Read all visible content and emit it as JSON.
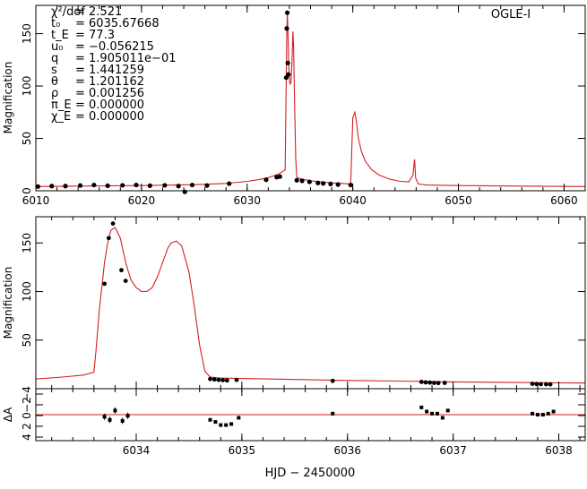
{
  "figure": {
    "xlabel": "HJD − 2450000"
  },
  "chart_data": [
    {
      "type": "line",
      "panel": "top",
      "label": "OGLE-I",
      "ylabel": "Magnification",
      "xlim": [
        6010,
        6062
      ],
      "ylim": [
        0,
        177
      ],
      "xticks": [
        6010,
        6020,
        6030,
        6040,
        6050,
        6060
      ],
      "yticks": [
        0,
        50,
        100,
        150
      ],
      "params": [
        {
          "sym": "χ²/dof",
          "val": "= 2.521"
        },
        {
          "sym": "t₀",
          "val": "= 6035.67668"
        },
        {
          "sym": "t_E",
          "val": "= 77.3"
        },
        {
          "sym": "u₀",
          "val": "= −0.056215"
        },
        {
          "sym": "q",
          "val": "= 1.905011e−01"
        },
        {
          "sym": "s",
          "val": "= 1.441259"
        },
        {
          "sym": "θ",
          "val": "= 1.201162"
        },
        {
          "sym": "ρ",
          "val": "= 0.001256"
        },
        {
          "sym": "π_E",
          "val": "= 0.000000"
        },
        {
          "sym": "χ_E",
          "val": "= 0.000000"
        }
      ],
      "model": {
        "x": [
          6010,
          6015,
          6020,
          6025,
          6028,
          6030,
          6031,
          6032,
          6033,
          6033.6,
          6033.7,
          6033.75,
          6033.8,
          6033.85,
          6033.95,
          6034.05,
          6034.15,
          6034.25,
          6034.33,
          6034.4,
          6034.5,
          6034.6,
          6034.7,
          6035,
          6036,
          6037,
          6038,
          6039,
          6039.8,
          6040.0,
          6040.2,
          6040.35,
          6040.5,
          6040.8,
          6041.2,
          6041.8,
          6042.5,
          6043.5,
          6044.5,
          6045.3,
          6045.7,
          6045.85,
          6045.95,
          6046.2,
          6047,
          6050,
          6055,
          6062
        ],
        "y": [
          4,
          4.5,
          5,
          5.8,
          7,
          9,
          10.5,
          12.5,
          16,
          20,
          108,
          148,
          170,
          155,
          118,
          102,
          103,
          125,
          152,
          138,
          80,
          30,
          13,
          11.5,
          9.5,
          8.5,
          7.5,
          7,
          6.5,
          70,
          75,
          66,
          52,
          38,
          28,
          20,
          15,
          11,
          9,
          8.5,
          15,
          30,
          12,
          6.5,
          5.5,
          5,
          4.5,
          4
        ]
      },
      "points": {
        "x": [
          6010.2,
          6011.5,
          6012.8,
          6014.2,
          6015.5,
          6016.8,
          6018.2,
          6019.5,
          6020.8,
          6022.2,
          6023.5,
          6024.1,
          6024.8,
          6026.2,
          6028.3,
          6031.8,
          6032.8,
          6033.1,
          6033.7,
          6033.75,
          6033.8,
          6033.85,
          6033.9,
          6034.7,
          6035.2,
          6035.9,
          6036.7,
          6037.2,
          6037.9,
          6038.6,
          6039.8
        ],
        "y": [
          4,
          4.5,
          4.5,
          5,
          5.5,
          4.8,
          5.2,
          5.5,
          4.8,
          5.2,
          4.5,
          -1,
          5.5,
          5,
          6.8,
          10.5,
          13,
          13.5,
          108,
          155,
          170,
          122,
          111,
          10,
          9.5,
          8.5,
          7.5,
          7,
          6.5,
          6,
          5.5
        ]
      }
    },
    {
      "type": "line",
      "panel": "middle",
      "ylabel": "Magnification",
      "xlim": [
        6033.05,
        6038.25
      ],
      "ylim": [
        0,
        177
      ],
      "xticks": [
        6034,
        6035,
        6036,
        6037,
        6038
      ],
      "yticks": [
        50,
        100,
        150
      ],
      "model": {
        "x": [
          6033.05,
          6033.3,
          6033.5,
          6033.6,
          6033.62,
          6033.65,
          6033.68,
          6033.7,
          6033.73,
          6033.76,
          6033.8,
          6033.85,
          6033.9,
          6033.95,
          6034.0,
          6034.05,
          6034.1,
          6034.15,
          6034.2,
          6034.25,
          6034.3,
          6034.33,
          6034.38,
          6034.43,
          6034.5,
          6034.55,
          6034.6,
          6034.65,
          6034.7,
          6034.75,
          6034.8,
          6035,
          6035.5,
          6036,
          6036.5,
          6037,
          6037.5,
          6038,
          6038.25
        ],
        "y": [
          10,
          12,
          14,
          17,
          40,
          80,
          110,
          130,
          150,
          163,
          166,
          155,
          130,
          112,
          104,
          100,
          100,
          104,
          115,
          130,
          145,
          150,
          152,
          147,
          120,
          85,
          45,
          18,
          12,
          11.5,
          11,
          10.5,
          9.5,
          8.5,
          7.8,
          7,
          6.5,
          6,
          5.8
        ]
      },
      "points": {
        "x": [
          6033.7,
          6033.74,
          6033.78,
          6033.86,
          6033.9,
          6034.7,
          6034.74,
          6034.78,
          6034.82,
          6034.86,
          6034.95,
          6035.86,
          6036.7,
          6036.74,
          6036.78,
          6036.82,
          6036.86,
          6036.92,
          6037.75,
          6037.79,
          6037.83,
          6037.88,
          6037.92
        ],
        "y": [
          108,
          155,
          170,
          122,
          111,
          10,
          9.5,
          9,
          8.8,
          8.5,
          9,
          8,
          7,
          6.5,
          6.3,
          6,
          5.8,
          6,
          5,
          4.8,
          4.7,
          4.6,
          4.5
        ]
      }
    },
    {
      "type": "scatter",
      "panel": "residuals",
      "ylabel": "ΔA",
      "xlim": [
        6033.05,
        6038.25
      ],
      "ylim": [
        -25,
        25
      ],
      "yticks": [
        -4,
        -2,
        0,
        2,
        4
      ],
      "ytick_labels": [
        "−4",
        "−2",
        "0",
        "2",
        "4"
      ],
      "xticks": [
        6034,
        6035,
        6036,
        6037,
        6038
      ],
      "points": {
        "x": [
          6033.7,
          6033.75,
          6033.8,
          6033.87,
          6033.92,
          6034.7,
          6034.75,
          6034.8,
          6034.85,
          6034.9,
          6034.97,
          6035.86,
          6036.7,
          6036.75,
          6036.8,
          6036.85,
          6036.9,
          6036.95,
          6037.75,
          6037.8,
          6037.85,
          6037.9,
          6037.95
        ],
        "y": [
          -2,
          -5,
          4,
          -6,
          -1,
          -5,
          -7,
          -10,
          -10,
          -9,
          -3,
          1,
          7,
          3,
          1,
          1,
          -3,
          4,
          1,
          0,
          0,
          1,
          3
        ],
        "err": [
          3,
          3,
          3,
          3,
          3,
          1.5,
          1.5,
          1.5,
          1.5,
          1.5,
          1.5,
          1.5,
          1.5,
          1.5,
          1.5,
          1.5,
          1.5,
          1.5,
          1.5,
          1.5,
          1.5,
          1.5,
          1.5
        ]
      }
    }
  ]
}
